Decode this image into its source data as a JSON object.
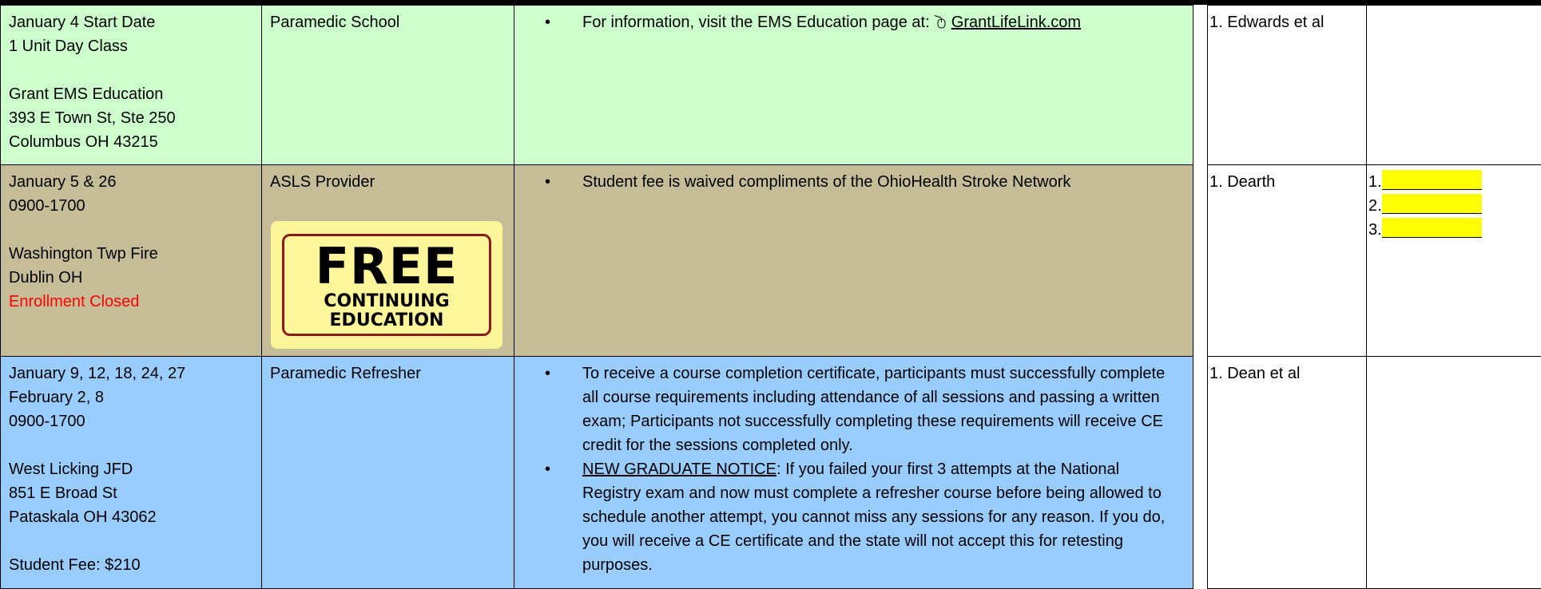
{
  "rows": [
    {
      "blocks": [
        [
          "January 4 Start Date",
          "1 Unit Day Class"
        ],
        [
          "Grant EMS Education",
          "393 E Town St, Ste 250",
          "Columbus OH 43215"
        ]
      ],
      "course": "Paramedic School",
      "notes": [
        {
          "text": "For information, visit the EMS Education page at:",
          "link": "GrantLifeLink.com"
        }
      ],
      "instructors": "1. Edwards et al",
      "slots": []
    },
    {
      "blocks": [
        [
          "January 5 &  26",
          "0900-1700"
        ],
        [
          "Washington Twp Fire",
          "Dublin OH"
        ]
      ],
      "status": "Enrollment Closed",
      "course": "ASLS Provider",
      "badge": [
        "FREE",
        "CONTINUING",
        "EDUCATION"
      ],
      "notes": [
        {
          "text": "Student fee is waived compliments of the OhioHealth Stroke Network"
        }
      ],
      "instructors": "1. Dearth",
      "slots": [
        "1.",
        "2.",
        "3."
      ]
    },
    {
      "blocks": [
        [
          "January 9, 12, 18, 24, 27",
          "February 2, 8",
          "0900-1700"
        ],
        [
          "West Licking JFD",
          "851 E Broad St",
          "Pataskala OH 43062"
        ],
        [
          "Student Fee: $210"
        ]
      ],
      "course": "Paramedic Refresher",
      "notes": [
        {
          "text": "To receive a course completion certificate, participants must successfully complete all course requirements including attendance of all sessions and passing a written exam; Participants not successfully completing these requirements will receive CE credit for the sessions completed only."
        },
        {
          "prefix": "NEW GRADUATE NOTICE",
          "text": ": If you failed your first 3 attempts at the National Registry exam and now must complete a refresher course before being allowed to schedule another attempt, you cannot miss any sessions for any reason. If you do, you will receive a CE certificate and the state will not accept this for retesting purposes."
        }
      ],
      "instructors": "1. Dean et al",
      "slots": []
    }
  ]
}
